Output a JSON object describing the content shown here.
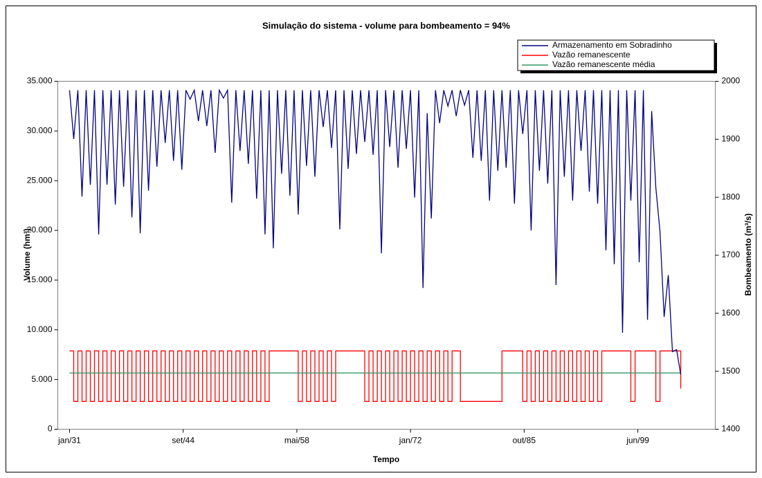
{
  "chart_data": {
    "type": "line",
    "title": "Simulação do sistema - volume para bombeamento = 94%",
    "xlabel": "Tempo",
    "ylabel": "Volume (hm³)",
    "y2label": "Bombeamento (m³/s)",
    "xlim": [
      -2.83,
      155.3
    ],
    "xticks": [
      {
        "value": 0,
        "label": "jan/31"
      },
      {
        "value": 27.33,
        "label": "set/44"
      },
      {
        "value": 54.67,
        "label": "mai/58"
      },
      {
        "value": 82,
        "label": "jan/72"
      },
      {
        "value": 109.33,
        "label": "out/85"
      },
      {
        "value": 136.67,
        "label": "jun/99"
      }
    ],
    "ylim": [
      0,
      35000
    ],
    "yticks": [
      {
        "value": 0,
        "label": "0"
      },
      {
        "value": 5000,
        "label": "5.000"
      },
      {
        "value": 10000,
        "label": "10.000"
      },
      {
        "value": 15000,
        "label": "15.000"
      },
      {
        "value": 20000,
        "label": "20.000"
      },
      {
        "value": 25000,
        "label": "25.000"
      },
      {
        "value": 30000,
        "label": "30.000"
      },
      {
        "value": 35000,
        "label": "35.000"
      }
    ],
    "y2lim": [
      1400,
      2000
    ],
    "y2ticks": [
      1400,
      1500,
      1600,
      1700,
      1800,
      1900,
      2000
    ],
    "legend": "upper right",
    "series": [
      {
        "name": "Armazenamento em Sobradinho",
        "color": "#000080",
        "axis": "y",
        "values": [
          34100,
          29200,
          34100,
          23400,
          34100,
          24600,
          34100,
          19600,
          34100,
          24600,
          34100,
          22600,
          34100,
          24400,
          34100,
          21300,
          34100,
          19700,
          34100,
          24000,
          34100,
          26400,
          34100,
          28800,
          34100,
          27000,
          34100,
          26100,
          34100,
          33200,
          34100,
          31000,
          34100,
          30500,
          34100,
          27800,
          34100,
          33300,
          34100,
          22800,
          34100,
          28000,
          34100,
          26700,
          34100,
          23200,
          34100,
          19600,
          34100,
          18200,
          34100,
          25700,
          34100,
          23500,
          34100,
          21600,
          34100,
          26500,
          34100,
          25400,
          34100,
          30400,
          34100,
          28300,
          34100,
          20100,
          34100,
          26200,
          34100,
          27700,
          34100,
          28900,
          34100,
          27600,
          34100,
          17700,
          34100,
          28400,
          34100,
          26300,
          34100,
          28200,
          34100,
          23300,
          34100,
          14200,
          31800,
          21200,
          34100,
          30800,
          34100,
          32500,
          34100,
          31500,
          34100,
          32600,
          34100,
          27300,
          34100,
          27000,
          34100,
          23000,
          34100,
          26000,
          34100,
          26300,
          34100,
          22700,
          34100,
          29700,
          34100,
          20000,
          34100,
          26000,
          34100,
          24700,
          34100,
          14500,
          34100,
          25400,
          34100,
          23000,
          34100,
          28000,
          34100,
          23900,
          34100,
          22700,
          34100,
          18000,
          34100,
          16600,
          34100,
          9700,
          34100,
          23000,
          34100,
          16800,
          34100,
          11000,
          32000,
          24300,
          19900,
          11300,
          15500,
          7800,
          8000,
          5500
        ]
      },
      {
        "name": "Vazão remanescente",
        "color": "#ff0000",
        "axis": "y2",
        "values": [
          1535,
          1448,
          1535,
          1448,
          1535,
          1448,
          1535,
          1448,
          1535,
          1448,
          1535,
          1448,
          1535,
          1448,
          1535,
          1448,
          1535,
          1448,
          1535,
          1448,
          1535,
          1448,
          1535,
          1448,
          1535,
          1448,
          1535,
          1448,
          1535,
          1448,
          1535,
          1448,
          1535,
          1448,
          1535,
          1448,
          1535,
          1448,
          1535,
          1448,
          1535,
          1448,
          1535,
          1448,
          1535,
          1448,
          1535,
          1448,
          1535,
          1535,
          1535,
          1535,
          1535,
          1535,
          1535,
          1448,
          1535,
          1448,
          1535,
          1448,
          1535,
          1448,
          1535,
          1448,
          1535,
          1535,
          1535,
          1535,
          1535,
          1535,
          1535,
          1448,
          1535,
          1448,
          1535,
          1448,
          1535,
          1448,
          1535,
          1448,
          1535,
          1448,
          1535,
          1448,
          1535,
          1448,
          1535,
          1448,
          1535,
          1448,
          1535,
          1448,
          1535,
          1535,
          1448,
          1448,
          1448,
          1448,
          1448,
          1448,
          1448,
          1448,
          1448,
          1448,
          1535,
          1535,
          1535,
          1535,
          1535,
          1448,
          1535,
          1448,
          1535,
          1448,
          1535,
          1448,
          1535,
          1448,
          1535,
          1448,
          1535,
          1448,
          1535,
          1448,
          1535,
          1448,
          1535,
          1448,
          1535,
          1535,
          1535,
          1535,
          1535,
          1535,
          1535,
          1448,
          1535,
          1535,
          1535,
          1535,
          1535,
          1448,
          1535,
          1535,
          1535,
          1535,
          1535,
          1470
        ]
      },
      {
        "name": "Vazão remanescente média",
        "color": "#339966",
        "axis": "y2",
        "values": [
          1497,
          1497,
          1497,
          1497,
          1497,
          1497,
          1497,
          1497,
          1497,
          1497,
          1497,
          1497,
          1497,
          1497,
          1497,
          1497,
          1497,
          1497,
          1497,
          1497,
          1497,
          1497,
          1497,
          1497,
          1497,
          1497,
          1497,
          1497,
          1497,
          1497,
          1497,
          1497,
          1497,
          1497,
          1497,
          1497,
          1497,
          1497,
          1497,
          1497,
          1497,
          1497,
          1497,
          1497,
          1497,
          1497,
          1497,
          1497,
          1497,
          1497,
          1497,
          1497,
          1497,
          1497,
          1497,
          1497,
          1497,
          1497,
          1497,
          1497,
          1497,
          1497,
          1497,
          1497,
          1497,
          1497,
          1497,
          1497,
          1497,
          1497,
          1497,
          1497,
          1497,
          1497,
          1497,
          1497,
          1497,
          1497,
          1497,
          1497,
          1497,
          1497,
          1497,
          1497,
          1497,
          1497,
          1497,
          1497,
          1497,
          1497,
          1497,
          1497,
          1497,
          1497,
          1497,
          1497,
          1497,
          1497,
          1497,
          1497,
          1497,
          1497,
          1497,
          1497,
          1497,
          1497,
          1497,
          1497,
          1497,
          1497,
          1497,
          1497,
          1497,
          1497,
          1497,
          1497,
          1497,
          1497,
          1497,
          1497,
          1497,
          1497,
          1497,
          1497,
          1497,
          1497,
          1497,
          1497,
          1497,
          1497,
          1497,
          1497,
          1497,
          1497,
          1497,
          1497,
          1497,
          1497,
          1497,
          1497,
          1497,
          1497,
          1497,
          1497,
          1497,
          1497,
          1497,
          1497
        ]
      }
    ]
  }
}
